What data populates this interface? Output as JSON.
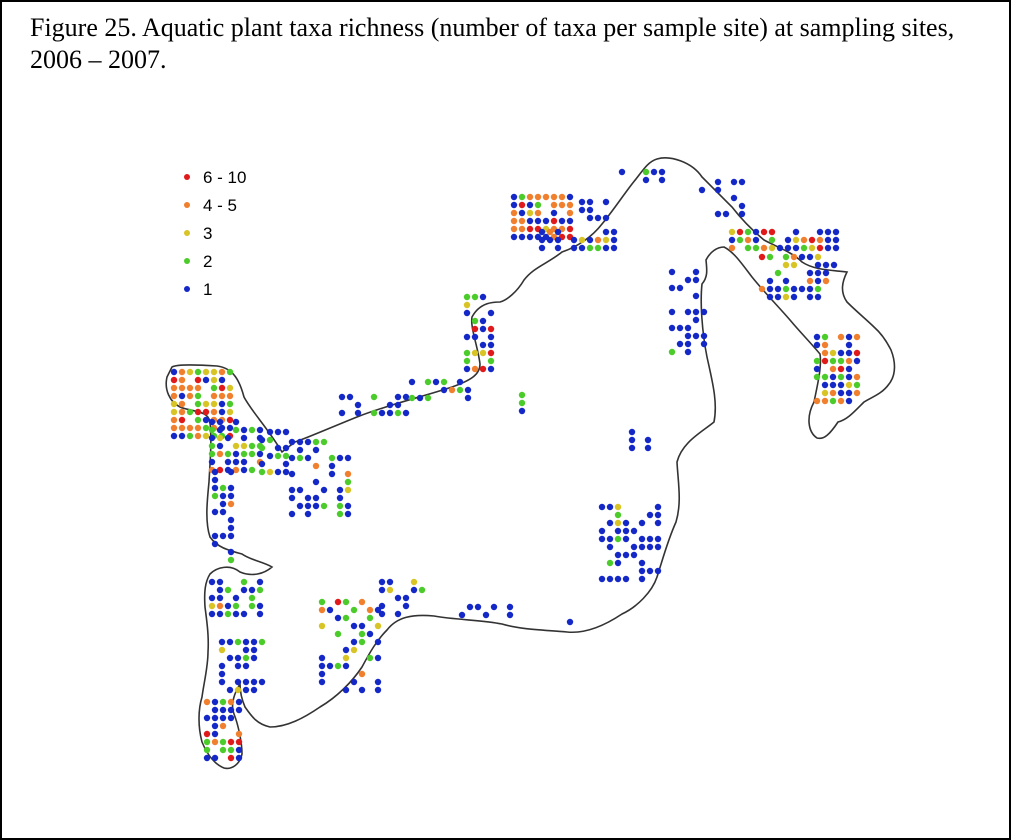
{
  "caption": "Figure 25.  Aquatic plant taxa richness (number of taxa per sample site) at sampling sites, 2006 – 2007.",
  "legend": [
    {
      "label": "6 - 10",
      "color": "#e01a1a"
    },
    {
      "label": "4 - 5",
      "color": "#f07f2e"
    },
    {
      "label": "3",
      "color": "#d8c425"
    },
    {
      "label": "2",
      "color": "#4ccc2a"
    },
    {
      "label": "1",
      "color": "#1428c8"
    }
  ],
  "colors": {
    "outline": "#333333",
    "frame": "#000000"
  }
}
